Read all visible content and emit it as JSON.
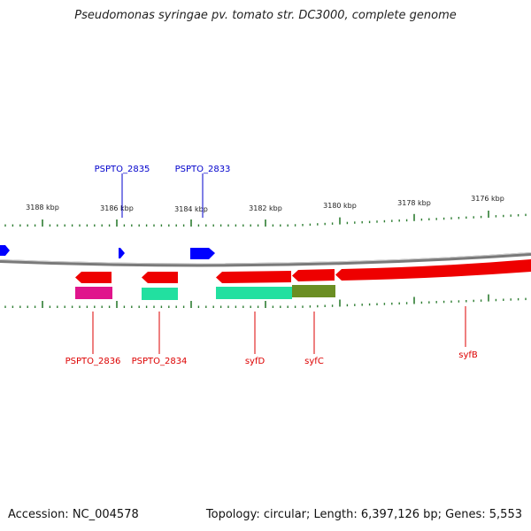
{
  "title": "Pseudomonas syringae pv. tomato str. DC3000, complete genome",
  "footer": {
    "accession": "Accession: NC_004578",
    "summary": "Topology: circular; Length: 6,397,126 bp; Genes: 5,553"
  },
  "colors": {
    "forward_gene": "#0000ff",
    "reverse_gene": "#ee0000",
    "backbone": "#888888",
    "ticks": "#2e7d32",
    "label_forward": "#0000cc",
    "label_reverse": "#dd0000",
    "cds_magenta": "#e0148c",
    "cds_teal": "#22e0a0",
    "cds_olive": "#6b8e23"
  },
  "scale_labels": [
    "3188 kbp",
    "3186 kbp",
    "3184 kbp",
    "3182 kbp",
    "3180 kbp",
    "3178 kbp",
    "3176 kbp"
  ],
  "genes_top": [
    {
      "label": "PSPTO_2835"
    },
    {
      "label": "PSPTO_2833"
    }
  ],
  "genes_bottom": [
    {
      "label": "PSPTO_2836"
    },
    {
      "label": "PSPTO_2834"
    },
    {
      "label": "syfD"
    },
    {
      "label": "syfC"
    },
    {
      "label": "syfB"
    }
  ]
}
